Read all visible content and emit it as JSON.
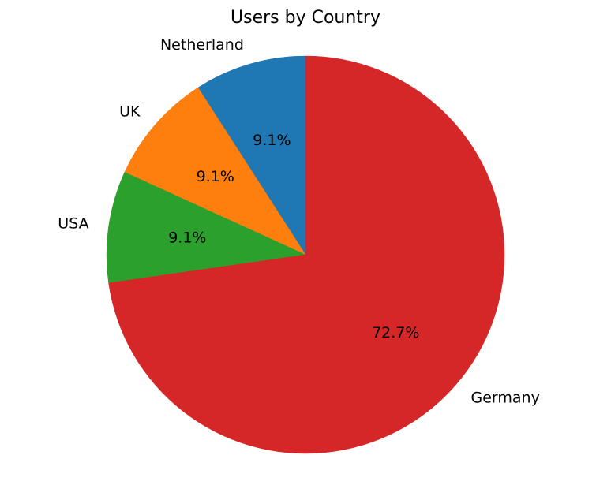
{
  "chart_data": {
    "type": "pie",
    "title": "Users by Country",
    "start_angle_deg": 90,
    "direction": "counterclockwise",
    "slices": [
      {
        "label": "Netherland",
        "value": 1,
        "pct_label": "9.1%",
        "color": "#1f77b4"
      },
      {
        "label": "UK",
        "value": 1,
        "pct_label": "9.1%",
        "color": "#ff7f0e"
      },
      {
        "label": "USA",
        "value": 1,
        "pct_label": "9.1%",
        "color": "#2ca02c"
      },
      {
        "label": "Germany",
        "value": 8,
        "pct_label": "72.7%",
        "color": "#d62728"
      }
    ]
  }
}
